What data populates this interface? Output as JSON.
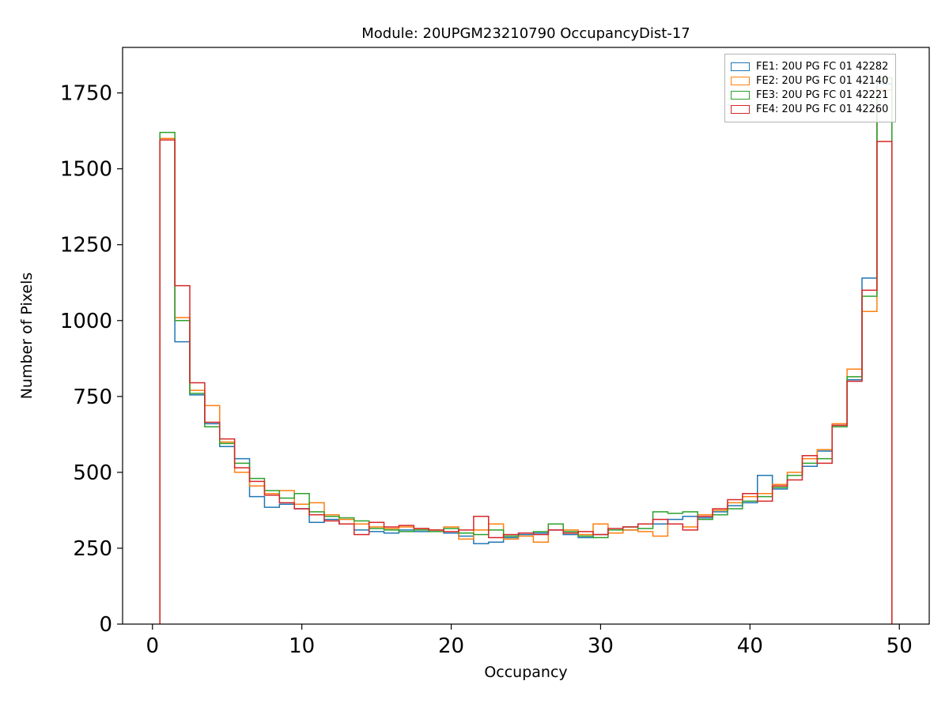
{
  "figure": {
    "background": "#ffffff"
  },
  "chart_data": {
    "type": "histogram-step",
    "title": "Module: 20UPGM23210790 OccupancyDist-17",
    "xlabel": "Occupancy",
    "ylabel": "Number of Pixels",
    "xlim": [
      -2,
      52
    ],
    "ylim": [
      0,
      1900
    ],
    "xticks": [
      0,
      10,
      20,
      30,
      40,
      50
    ],
    "yticks": [
      0,
      250,
      500,
      750,
      1000,
      1250,
      1500,
      1750
    ],
    "bin_start": 0.5,
    "bin_width": 1,
    "grid": false,
    "legend_position": "upper-right",
    "series": [
      {
        "name": "FE1: 20U PG FC 01 42282",
        "color": "#1f77b4",
        "values": [
          1600,
          930,
          755,
          660,
          585,
          545,
          420,
          385,
          395,
          380,
          335,
          345,
          330,
          310,
          305,
          300,
          310,
          305,
          310,
          300,
          290,
          265,
          270,
          285,
          295,
          300,
          310,
          295,
          285,
          295,
          300,
          310,
          330,
          330,
          345,
          355,
          350,
          370,
          390,
          400,
          490,
          445,
          490,
          520,
          570,
          655,
          805,
          1140,
          1780
        ]
      },
      {
        "name": "FE2: 20U PG FC 01 42140",
        "color": "#ff7f0e",
        "values": [
          1600,
          1010,
          770,
          720,
          600,
          500,
          455,
          430,
          440,
          395,
          400,
          360,
          345,
          330,
          320,
          315,
          320,
          315,
          310,
          320,
          280,
          310,
          330,
          280,
          290,
          270,
          330,
          310,
          295,
          330,
          300,
          310,
          305,
          290,
          330,
          320,
          360,
          375,
          400,
          420,
          430,
          460,
          500,
          545,
          575,
          660,
          840,
          1030,
          1760
        ]
      },
      {
        "name": "FE3: 20U PG FC 01 42221",
        "color": "#2ca02c",
        "values": [
          1620,
          1000,
          760,
          650,
          595,
          530,
          480,
          440,
          415,
          430,
          370,
          355,
          350,
          340,
          315,
          310,
          305,
          310,
          305,
          315,
          300,
          295,
          310,
          290,
          300,
          305,
          330,
          305,
          290,
          285,
          310,
          320,
          315,
          370,
          365,
          370,
          345,
          360,
          380,
          405,
          420,
          450,
          490,
          530,
          545,
          650,
          815,
          1080,
          1800
        ]
      },
      {
        "name": "FE4: 20U PG FC 01 42260",
        "color": "#d62728",
        "values": [
          1595,
          1115,
          795,
          665,
          610,
          515,
          470,
          425,
          400,
          380,
          360,
          340,
          330,
          295,
          335,
          320,
          325,
          315,
          310,
          305,
          310,
          355,
          285,
          295,
          300,
          295,
          310,
          300,
          305,
          295,
          315,
          320,
          330,
          345,
          330,
          310,
          355,
          380,
          410,
          430,
          405,
          455,
          475,
          555,
          530,
          655,
          800,
          1100,
          1590
        ]
      }
    ]
  }
}
